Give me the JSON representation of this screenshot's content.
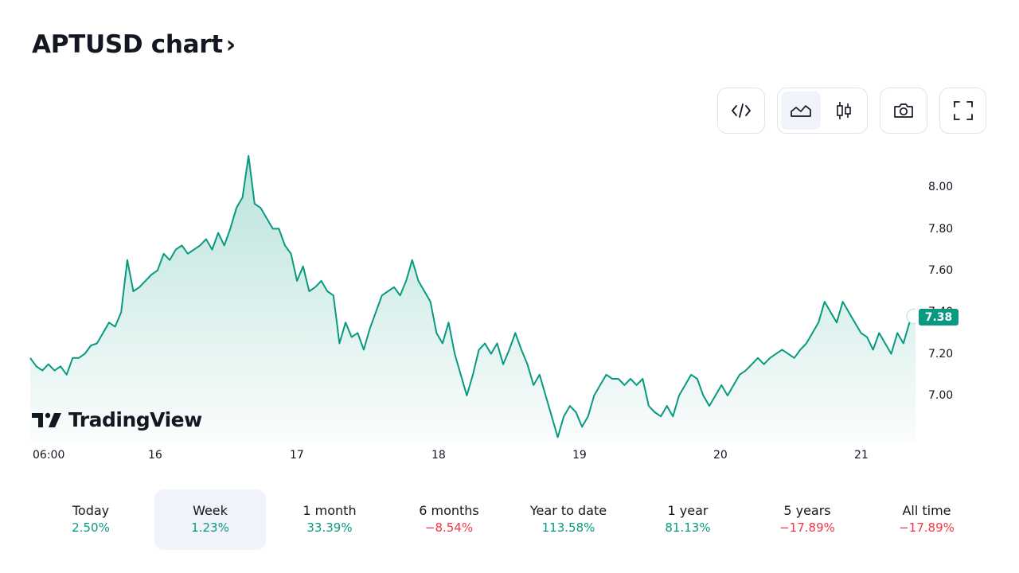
{
  "header": {
    "title": "APTUSD chart",
    "chevron": "›"
  },
  "toolbar": {
    "embed_icon": "code-icon",
    "chart_types": [
      {
        "name": "area-chart-icon",
        "active": true
      },
      {
        "name": "candlestick-icon",
        "active": false
      }
    ],
    "snapshot_icon": "camera-icon",
    "fullscreen_icon": "fullscreen-icon"
  },
  "branding": {
    "logo_text": "TradingView"
  },
  "chart_data": {
    "type": "area",
    "symbol": "APTUSD",
    "last_price_label": "7.38",
    "line_color": "#089981",
    "y_ticks": [
      "8.00",
      "7.80",
      "7.60",
      "7.40",
      "7.20",
      "7.00"
    ],
    "x_ticks": [
      "06:00",
      "16",
      "17",
      "18",
      "19",
      "20",
      "21"
    ],
    "ylim": [
      6.8,
      8.15
    ],
    "grid": false,
    "series": [
      {
        "values": [
          7.18,
          7.14,
          7.12,
          7.15,
          7.12,
          7.14,
          7.1,
          7.18,
          7.18,
          7.2,
          7.24,
          7.25,
          7.3,
          7.35,
          7.33,
          7.4,
          7.65,
          7.5,
          7.52,
          7.55,
          7.58,
          7.6,
          7.68,
          7.65,
          7.7,
          7.72,
          7.68,
          7.7,
          7.72,
          7.75,
          7.7,
          7.78,
          7.72,
          7.8,
          7.9,
          7.95,
          8.15,
          7.92,
          7.9,
          7.85,
          7.8,
          7.8,
          7.72,
          7.68,
          7.55,
          7.62,
          7.5,
          7.52,
          7.55,
          7.5,
          7.48,
          7.25,
          7.35,
          7.28,
          7.3,
          7.22,
          7.32,
          7.4,
          7.48,
          7.5,
          7.52,
          7.48,
          7.55,
          7.65,
          7.55,
          7.5,
          7.45,
          7.3,
          7.25,
          7.35,
          7.2,
          7.1,
          7.0,
          7.1,
          7.22,
          7.25,
          7.2,
          7.25,
          7.15,
          7.22,
          7.3,
          7.22,
          7.15,
          7.05,
          7.1,
          7.0,
          6.9,
          6.8,
          6.9,
          6.95,
          6.92,
          6.85,
          6.9,
          7.0,
          7.05,
          7.1,
          7.08,
          7.08,
          7.05,
          7.08,
          7.05,
          7.08,
          6.95,
          6.92,
          6.9,
          6.95,
          6.9,
          7.0,
          7.05,
          7.1,
          7.08,
          7.0,
          6.95,
          7.0,
          7.05,
          7.0,
          7.05,
          7.1,
          7.12,
          7.15,
          7.18,
          7.15,
          7.18,
          7.2,
          7.22,
          7.2,
          7.18,
          7.22,
          7.25,
          7.3,
          7.35,
          7.45,
          7.4,
          7.35,
          7.45,
          7.4,
          7.35,
          7.3,
          7.28,
          7.22,
          7.3,
          7.25,
          7.2,
          7.3,
          7.25,
          7.35,
          7.38
        ]
      }
    ]
  },
  "periods": [
    {
      "label": "Today",
      "change": "2.50%",
      "trend": "up",
      "active": false
    },
    {
      "label": "Week",
      "change": "1.23%",
      "trend": "up",
      "active": true
    },
    {
      "label": "1 month",
      "change": "33.39%",
      "trend": "up",
      "active": false
    },
    {
      "label": "6 months",
      "change": "−8.54%",
      "trend": "down",
      "active": false
    },
    {
      "label": "Year to date",
      "change": "113.58%",
      "trend": "up",
      "active": false
    },
    {
      "label": "1 year",
      "change": "81.13%",
      "trend": "up",
      "active": false
    },
    {
      "label": "5 years",
      "change": "−17.89%",
      "trend": "down",
      "active": false
    },
    {
      "label": "All time",
      "change": "−17.89%",
      "trend": "down",
      "active": false
    }
  ]
}
